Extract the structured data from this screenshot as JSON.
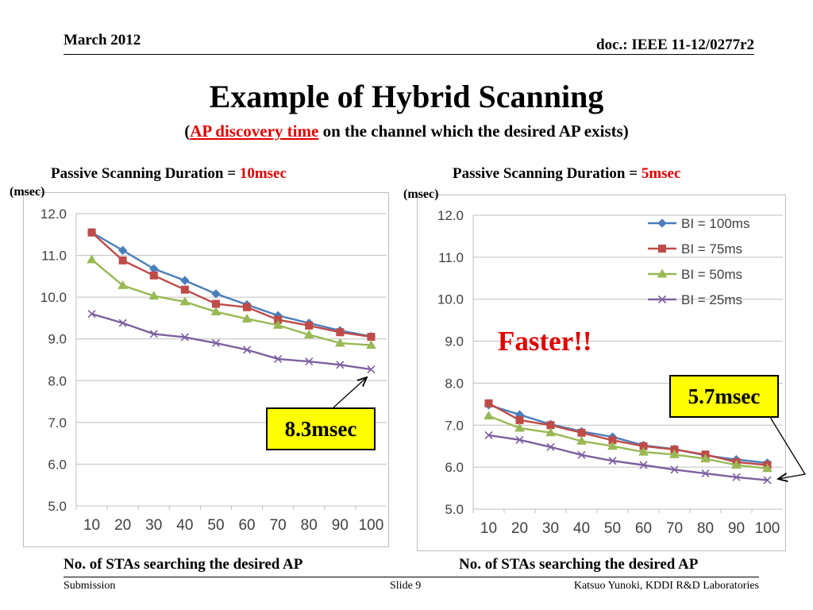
{
  "header": {
    "date": "March 2012",
    "doc": "doc.: IEEE 11-12/0277r2"
  },
  "title": "Example of Hybrid Scanning",
  "subtitle": {
    "open": "(",
    "highlight": "AP discovery time",
    "rest": " on the channel which the desired AP exists)"
  },
  "left_panel": {
    "heading_prefix": "Passive Scanning Duration = ",
    "heading_value": "10msec",
    "unit": "(msec)",
    "x_caption": "No. of STAs searching the desired AP",
    "callout": "8.3msec"
  },
  "right_panel": {
    "heading_prefix": "Passive Scanning Duration = ",
    "heading_value": "5msec",
    "unit": "(msec)",
    "x_caption": "No. of STAs searching the desired AP",
    "callout": "5.7msec",
    "annotation": "Faster!!"
  },
  "footer": {
    "left": "Submission",
    "center": "Slide 9",
    "right": "Katsuo Yunoki, KDDI R&D Laboratories"
  },
  "colors": {
    "bi100": "#4a7ebb",
    "bi75": "#be4b48",
    "bi50": "#98b954",
    "bi25": "#7d60a0",
    "accent_red": "#e00000",
    "callout_bg": "#ffff00"
  },
  "chart_data": [
    {
      "type": "line",
      "title": "Passive Scanning Duration = 10msec",
      "xlabel": "No. of STAs searching the desired AP",
      "ylabel": "(msec)",
      "x": [
        10,
        20,
        30,
        40,
        50,
        60,
        70,
        80,
        90,
        100
      ],
      "ylim": [
        5.0,
        12.0
      ],
      "yticks": [
        "5.0",
        "6.0",
        "7.0",
        "8.0",
        "9.0",
        "10.0",
        "11.0",
        "12.0"
      ],
      "grid": true,
      "legend": "none",
      "series": [
        {
          "name": "BI = 100ms",
          "marker": "diamond",
          "values": [
            11.55,
            11.12,
            10.68,
            10.4,
            10.08,
            9.82,
            9.56,
            9.38,
            9.2,
            9.06
          ]
        },
        {
          "name": "BI = 75ms",
          "marker": "square",
          "values": [
            11.55,
            10.88,
            10.52,
            10.18,
            9.84,
            9.76,
            9.46,
            9.32,
            9.16,
            9.05
          ]
        },
        {
          "name": "BI = 50ms",
          "marker": "triangle",
          "values": [
            10.9,
            10.28,
            10.03,
            9.89,
            9.65,
            9.48,
            9.33,
            9.1,
            8.9,
            8.85
          ]
        },
        {
          "name": "BI = 25ms",
          "marker": "x",
          "values": [
            9.6,
            9.38,
            9.12,
            9.04,
            8.9,
            8.74,
            8.52,
            8.46,
            8.38,
            8.27
          ]
        }
      ]
    },
    {
      "type": "line",
      "title": "Passive Scanning Duration = 5msec",
      "xlabel": "No. of STAs searching the desired AP",
      "ylabel": "(msec)",
      "x": [
        10,
        20,
        30,
        40,
        50,
        60,
        70,
        80,
        90,
        100
      ],
      "ylim": [
        5.0,
        12.0
      ],
      "yticks": [
        "5.0",
        "6.0",
        "7.0",
        "8.0",
        "9.0",
        "10.0",
        "11.0",
        "12.0"
      ],
      "grid": true,
      "legend": "top-right",
      "series": [
        {
          "name": "BI = 100ms",
          "marker": "diamond",
          "values": [
            7.48,
            7.25,
            7.02,
            6.85,
            6.72,
            6.52,
            6.43,
            6.28,
            6.18,
            6.1
          ]
        },
        {
          "name": "BI = 75ms",
          "marker": "square",
          "values": [
            7.52,
            7.12,
            7.0,
            6.82,
            6.64,
            6.5,
            6.42,
            6.3,
            6.12,
            6.05
          ]
        },
        {
          "name": "BI = 50ms",
          "marker": "triangle",
          "values": [
            7.22,
            6.93,
            6.82,
            6.62,
            6.5,
            6.36,
            6.3,
            6.2,
            6.05,
            5.97
          ]
        },
        {
          "name": "BI = 25ms",
          "marker": "x",
          "values": [
            6.76,
            6.65,
            6.48,
            6.29,
            6.15,
            6.05,
            5.94,
            5.85,
            5.76,
            5.69
          ]
        }
      ]
    }
  ]
}
